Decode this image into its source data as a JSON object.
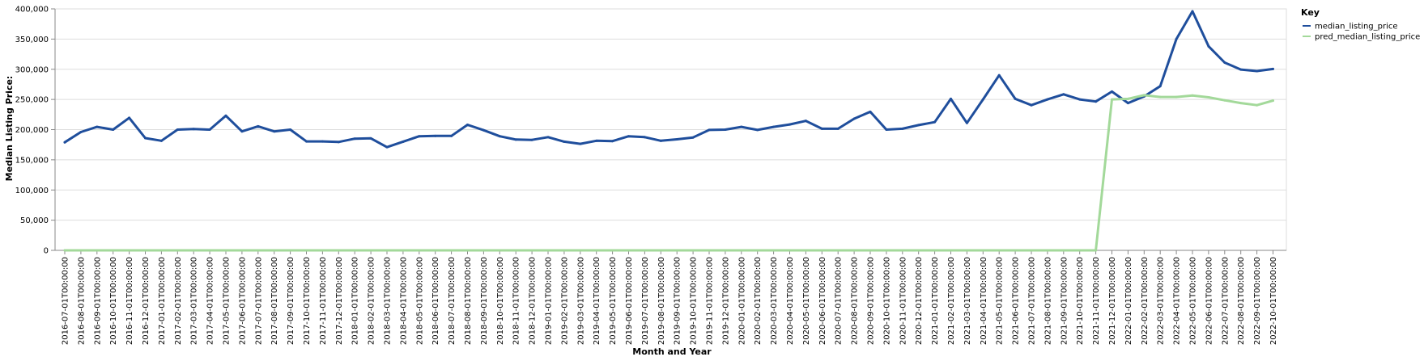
{
  "chart_data": {
    "type": "line",
    "xlabel": "Month and Year",
    "ylabel": "Median Listing Price:",
    "ylim": [
      0,
      400000
    ],
    "yticks": [
      0,
      50000,
      100000,
      150000,
      200000,
      250000,
      300000,
      350000,
      400000
    ],
    "ytick_labels": [
      "0",
      "50,000",
      "100,000",
      "150,000",
      "200,000",
      "250,000",
      "300,000",
      "350,000",
      "400,000"
    ],
    "grid": true,
    "legend": {
      "title": "Key",
      "placement": "top-right"
    },
    "x": [
      "2016-07-01T00:00:00",
      "2016-08-01T00:00:00",
      "2016-09-01T00:00:00",
      "2016-10-01T00:00:00",
      "2016-11-01T00:00:00",
      "2016-12-01T00:00:00",
      "2017-01-01T00:00:00",
      "2017-02-01T00:00:00",
      "2017-03-01T00:00:00",
      "2017-04-01T00:00:00",
      "2017-05-01T00:00:00",
      "2017-06-01T00:00:00",
      "2017-07-01T00:00:00",
      "2017-08-01T00:00:00",
      "2017-09-01T00:00:00",
      "2017-10-01T00:00:00",
      "2017-11-01T00:00:00",
      "2017-12-01T00:00:00",
      "2018-01-01T00:00:00",
      "2018-02-01T00:00:00",
      "2018-03-01T00:00:00",
      "2018-04-01T00:00:00",
      "2018-05-01T00:00:00",
      "2018-06-01T00:00:00",
      "2018-07-01T00:00:00",
      "2018-08-01T00:00:00",
      "2018-09-01T00:00:00",
      "2018-10-01T00:00:00",
      "2018-11-01T00:00:00",
      "2018-12-01T00:00:00",
      "2019-01-01T00:00:00",
      "2019-02-01T00:00:00",
      "2019-03-01T00:00:00",
      "2019-04-01T00:00:00",
      "2019-05-01T00:00:00",
      "2019-06-01T00:00:00",
      "2019-07-01T00:00:00",
      "2019-08-01T00:00:00",
      "2019-09-01T00:00:00",
      "2019-10-01T00:00:00",
      "2019-11-01T00:00:00",
      "2019-12-01T00:00:00",
      "2020-01-01T00:00:00",
      "2020-02-01T00:00:00",
      "2020-03-01T00:00:00",
      "2020-04-01T00:00:00",
      "2020-05-01T00:00:00",
      "2020-06-01T00:00:00",
      "2020-07-01T00:00:00",
      "2020-08-01T00:00:00",
      "2020-09-01T00:00:00",
      "2020-10-01T00:00:00",
      "2020-11-01T00:00:00",
      "2020-12-01T00:00:00",
      "2021-01-01T00:00:00",
      "2021-02-01T00:00:00",
      "2021-03-01T00:00:00",
      "2021-04-01T00:00:00",
      "2021-05-01T00:00:00",
      "2021-06-01T00:00:00",
      "2021-07-01T00:00:00",
      "2021-08-01T00:00:00",
      "2021-09-01T00:00:00",
      "2021-10-01T00:00:00",
      "2021-11-01T00:00:00",
      "2021-12-01T00:00:00",
      "2022-01-01T00:00:00",
      "2022-02-01T00:00:00",
      "2022-03-01T00:00:00",
      "2022-04-01T00:00:00",
      "2022-05-01T00:00:00",
      "2022-06-01T00:00:00",
      "2022-07-01T00:00:00",
      "2022-08-01T00:00:00",
      "2022-09-01T00:00:00",
      "2022-10-01T00:00:00"
    ],
    "series": [
      {
        "name": "median_listing_price",
        "color": "#1f4e9c",
        "values": [
          179000,
          196000,
          204500,
          200000,
          219500,
          186000,
          181500,
          200000,
          201000,
          200000,
          223000,
          197000,
          205500,
          197000,
          200000,
          180500,
          180500,
          179500,
          185000,
          185500,
          171000,
          180000,
          189000,
          189500,
          189500,
          208000,
          199000,
          189000,
          183500,
          183000,
          187500,
          180000,
          176500,
          181500,
          181000,
          189000,
          187500,
          181500,
          184000,
          187000,
          199500,
          200000,
          204500,
          199500,
          204500,
          208500,
          214500,
          201500,
          201500,
          218000,
          229500,
          200000,
          201500,
          207500,
          212500,
          251000,
          211000,
          250000,
          290000,
          251000,
          240500,
          250000,
          258500,
          250000,
          246500,
          263000,
          244000,
          255000,
          272000,
          350000,
          396000,
          338000,
          311000,
          299500,
          297000,
          300500
        ]
      },
      {
        "name": "pred_median_listing_price",
        "color": "#a3d99a",
        "values": [
          0,
          0,
          0,
          0,
          0,
          0,
          0,
          0,
          0,
          0,
          0,
          0,
          0,
          0,
          0,
          0,
          0,
          0,
          0,
          0,
          0,
          0,
          0,
          0,
          0,
          0,
          0,
          0,
          0,
          0,
          0,
          0,
          0,
          0,
          0,
          0,
          0,
          0,
          0,
          0,
          0,
          0,
          0,
          0,
          0,
          0,
          0,
          0,
          0,
          0,
          0,
          0,
          0,
          0,
          0,
          0,
          0,
          0,
          0,
          0,
          0,
          0,
          0,
          0,
          0,
          250000,
          251000,
          257000,
          254000,
          254000,
          256500,
          253500,
          248500,
          244000,
          240500,
          248000
        ]
      }
    ]
  }
}
